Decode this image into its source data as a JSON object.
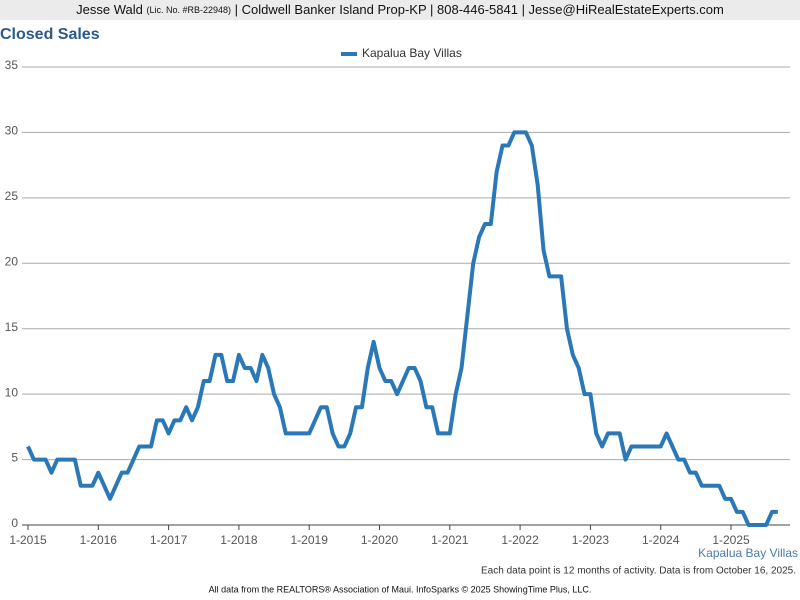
{
  "header": {
    "name": "Jesse Wald",
    "license": "(Lic. No. #RB-22948)",
    "rest": "| Coldwell Banker Island Prop-KP | 808-446-5841 | Jesse@HiRealEstateExperts.com"
  },
  "chart_data": {
    "type": "line",
    "title": "Closed Sales",
    "categories": [
      "1-2015",
      null,
      null,
      null,
      null,
      null,
      null,
      null,
      null,
      null,
      null,
      null,
      "1-2016",
      null,
      null,
      null,
      null,
      null,
      null,
      null,
      null,
      null,
      null,
      null,
      "1-2017",
      null,
      null,
      null,
      null,
      null,
      null,
      null,
      null,
      null,
      null,
      null,
      "1-2018",
      null,
      null,
      null,
      null,
      null,
      null,
      null,
      null,
      null,
      null,
      null,
      "1-2019",
      null,
      null,
      null,
      null,
      null,
      null,
      null,
      null,
      null,
      null,
      null,
      "1-2020",
      null,
      null,
      null,
      null,
      null,
      null,
      null,
      null,
      null,
      null,
      null,
      "1-2021",
      null,
      null,
      null,
      null,
      null,
      null,
      null,
      null,
      null,
      null,
      null,
      "1-2022",
      null,
      null,
      null,
      null,
      null,
      null,
      null,
      null,
      null,
      null,
      null,
      "1-2023",
      null,
      null,
      null,
      null,
      null,
      null,
      null,
      null,
      null,
      null,
      null,
      "1-2024",
      null,
      null,
      null,
      null,
      null,
      null,
      null,
      null,
      null,
      null,
      null,
      "1-2025",
      null,
      null,
      null,
      null,
      null,
      null,
      null,
      null
    ],
    "series": [
      {
        "name": "Kapalua Bay Villas",
        "color": "#2a78b8",
        "values": [
          6,
          5,
          5,
          5,
          4,
          5,
          5,
          5,
          5,
          3,
          3,
          3,
          4,
          3,
          2,
          3,
          4,
          4,
          5,
          6,
          6,
          6,
          8,
          8,
          7,
          8,
          8,
          9,
          8,
          9,
          11,
          11,
          13,
          13,
          11,
          11,
          13,
          12,
          12,
          11,
          13,
          12,
          10,
          9,
          7,
          7,
          7,
          7,
          7,
          8,
          9,
          9,
          7,
          6,
          6,
          7,
          9,
          9,
          12,
          14,
          12,
          11,
          11,
          10,
          11,
          12,
          12,
          11,
          9,
          9,
          7,
          7,
          7,
          10,
          12,
          16,
          20,
          22,
          23,
          23,
          27,
          29,
          29,
          30,
          30,
          30,
          29,
          26,
          21,
          19,
          19,
          19,
          15,
          13,
          12,
          10,
          10,
          7,
          6,
          7,
          7,
          7,
          5,
          6,
          6,
          6,
          6,
          6,
          6,
          7,
          6,
          5,
          5,
          4,
          4,
          3,
          3,
          3,
          3,
          2,
          2,
          1,
          1,
          0,
          0,
          0,
          0,
          1,
          1
        ]
      }
    ],
    "ylim": [
      0,
      35
    ],
    "yticks": [
      0,
      5,
      10,
      15,
      20,
      25,
      30,
      35
    ],
    "grid": true,
    "note": "Each data point is 12 months of activity. Data is from October 16, 2025."
  },
  "footer": "All data from the REALTORS® Association of Maui. InfoSparks © 2025 ShowingTime Plus, LLC."
}
